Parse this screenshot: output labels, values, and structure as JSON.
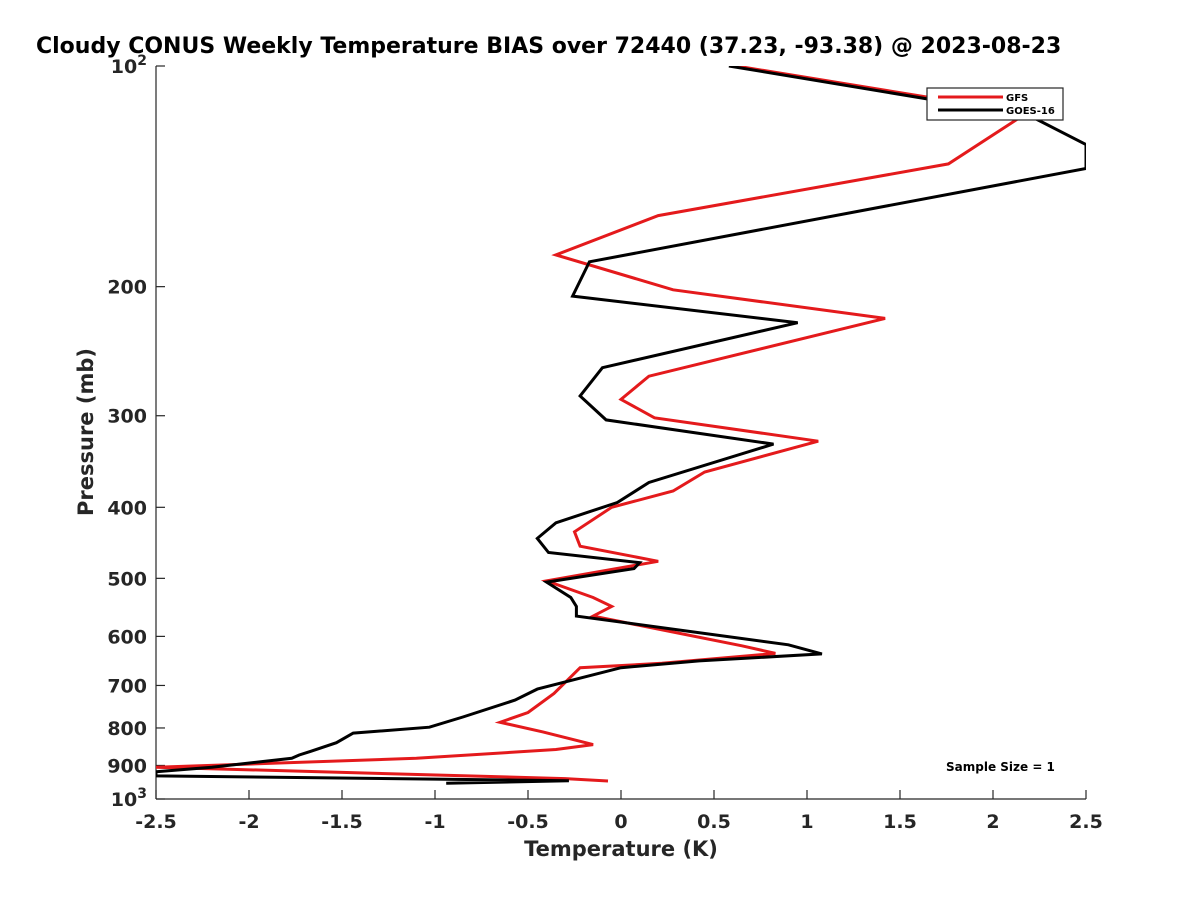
{
  "chart_data": {
    "type": "line",
    "title": "Cloudy CONUS Weekly Temperature BIAS over 72440 (37.23, -93.38) @ 2023-08-23",
    "xlabel": "Temperature (K)",
    "ylabel": "Pressure (mb)",
    "xlim": [
      -2.5,
      2.5
    ],
    "ylim": [
      100,
      1000
    ],
    "y_scale": "log",
    "y_reversed": true,
    "grid": false,
    "legend_position": "top-right",
    "x_ticks": [
      "-2.5",
      "-2",
      "-1.5",
      "-1",
      "-0.5",
      "0",
      "0.5",
      "1",
      "1.5",
      "2",
      "2.5"
    ],
    "y_ticks": [
      {
        "value": 100,
        "base": "10",
        "exp": "2"
      },
      {
        "value": 200,
        "label": "200"
      },
      {
        "value": 300,
        "label": "300"
      },
      {
        "value": 400,
        "label": "400"
      },
      {
        "value": 500,
        "label": "500"
      },
      {
        "value": 600,
        "label": "600"
      },
      {
        "value": 700,
        "label": "700"
      },
      {
        "value": 800,
        "label": "800"
      },
      {
        "value": 900,
        "label": "900"
      },
      {
        "value": 1000,
        "base": "10",
        "exp": "3"
      }
    ],
    "annotation": "Sample Size = 1",
    "series": [
      {
        "name": "GFS",
        "color": "#e41a1c",
        "points": [
          [
            0.62,
            100
          ],
          [
            2.18,
            116
          ],
          [
            1.76,
            136
          ],
          [
            0.2,
            160
          ],
          [
            -0.35,
            181
          ],
          [
            0.28,
            202
          ],
          [
            1.42,
            221
          ],
          [
            0.15,
            265
          ],
          [
            0.0,
            285
          ],
          [
            0.18,
            302
          ],
          [
            1.06,
            325
          ],
          [
            0.45,
            358
          ],
          [
            0.28,
            380
          ],
          [
            -0.05,
            400
          ],
          [
            -0.25,
            432
          ],
          [
            -0.22,
            452
          ],
          [
            0.2,
            474
          ],
          [
            -0.4,
            504
          ],
          [
            -0.15,
            531
          ],
          [
            -0.05,
            546
          ],
          [
            -0.15,
            563
          ],
          [
            0.65,
            618
          ],
          [
            0.83,
            633
          ],
          [
            0.22,
            653
          ],
          [
            -0.22,
            662
          ],
          [
            -0.36,
            718
          ],
          [
            -0.5,
            762
          ],
          [
            -0.65,
            786
          ],
          [
            -0.42,
            810
          ],
          [
            -0.15,
            843
          ],
          [
            -0.35,
            856
          ],
          [
            -1.1,
            880
          ],
          [
            -2.5,
            905
          ],
          [
            -0.3,
            938
          ],
          [
            -0.07,
            945
          ]
        ]
      },
      {
        "name": "GOES-16",
        "color": "#000000",
        "points": [
          [
            0.58,
            100
          ],
          [
            2.2,
            117
          ],
          [
            2.5,
            128
          ],
          [
            2.5,
            138
          ],
          [
            -0.17,
            185
          ],
          [
            -0.26,
            206
          ],
          [
            0.95,
            224
          ],
          [
            -0.1,
            258
          ],
          [
            -0.22,
            282
          ],
          [
            -0.08,
            304
          ],
          [
            0.82,
            328
          ],
          [
            0.15,
            370
          ],
          [
            -0.02,
            394
          ],
          [
            -0.35,
            420
          ],
          [
            -0.45,
            441
          ],
          [
            -0.39,
            461
          ],
          [
            0.1,
            476
          ],
          [
            0.07,
            485
          ],
          [
            -0.4,
            506
          ],
          [
            -0.27,
            531
          ],
          [
            -0.24,
            546
          ],
          [
            -0.24,
            563
          ],
          [
            0.9,
            616
          ],
          [
            1.08,
            634
          ],
          [
            0.42,
            648
          ],
          [
            0.0,
            662
          ],
          [
            -0.45,
            708
          ],
          [
            -0.57,
            733
          ],
          [
            -0.85,
            773
          ],
          [
            -1.03,
            798
          ],
          [
            -1.44,
            813
          ],
          [
            -1.53,
            838
          ],
          [
            -1.67,
            861
          ],
          [
            -1.73,
            871
          ],
          [
            -1.77,
            880
          ],
          [
            -2.2,
            905
          ],
          [
            -2.5,
            918
          ],
          [
            -2.5,
            930
          ],
          [
            -0.28,
            944
          ],
          [
            -0.94,
            952
          ]
        ]
      }
    ]
  }
}
